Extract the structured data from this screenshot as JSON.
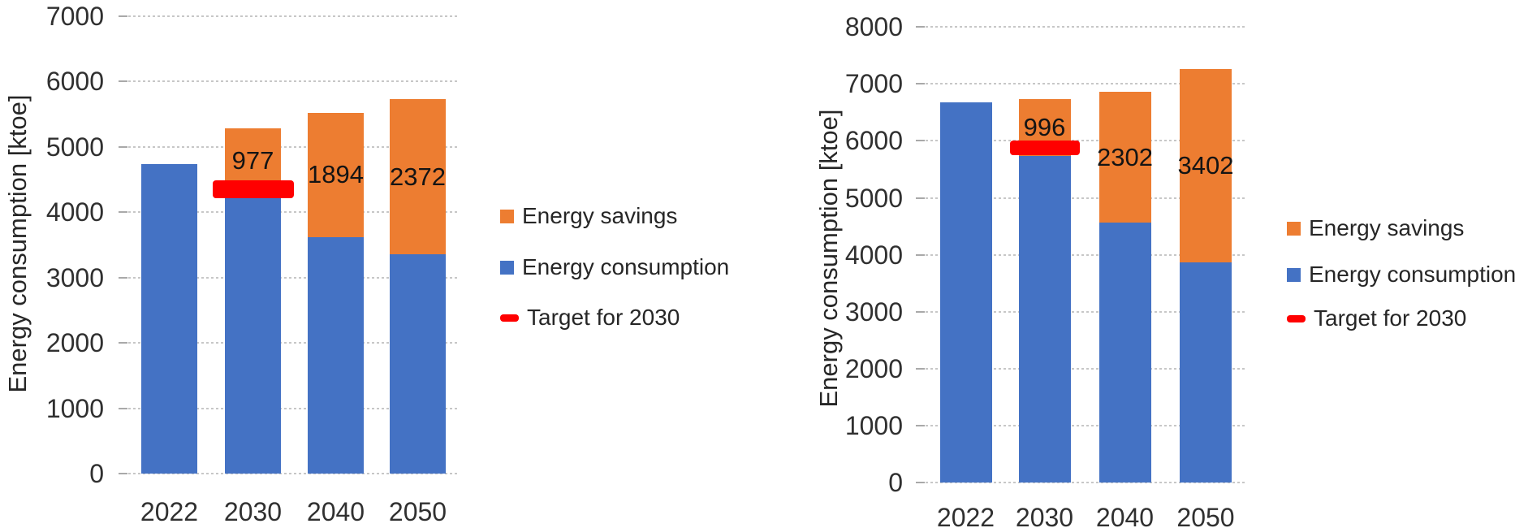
{
  "figure": {
    "background": "#ffffff",
    "description": "Two stacked bar charts of energy consumption and energy savings scenarios for 2022-2050 with a 2030 target marker"
  },
  "colors": {
    "consumption": "#4472C4",
    "savings": "#ED7D31",
    "target": "#FF0000",
    "gridline": "#c7c7c7",
    "axis_text": "#303030"
  },
  "chart_data": [
    {
      "type": "bar",
      "stacked": true,
      "title": "",
      "ylabel": "Energy consumption [ktoe]",
      "xlabel": "",
      "categories": [
        "2022",
        "2030",
        "2040",
        "2050"
      ],
      "series": [
        {
          "name": "Energy consumption",
          "color": "#4472C4",
          "values": [
            4730,
            4300,
            3620,
            3350
          ]
        },
        {
          "name": "Energy savings",
          "color": "#ED7D31",
          "values": [
            0,
            977,
            1894,
            2372
          ]
        }
      ],
      "data_labels": {
        "series": "Energy savings",
        "values": [
          null,
          977,
          1894,
          2372
        ]
      },
      "target_marker": {
        "name": "Target for 2030",
        "category": "2030",
        "value": 4350,
        "color": "#FF0000"
      },
      "ylim": [
        0,
        7000
      ],
      "yticks": [
        0,
        1000,
        2000,
        3000,
        4000,
        5000,
        6000,
        7000
      ],
      "grid": "horizontal-dotted",
      "legend_position": "right",
      "legend": [
        {
          "label": "Energy savings",
          "swatch": "square",
          "color": "#ED7D31"
        },
        {
          "label": "Energy consumption",
          "swatch": "square",
          "color": "#4472C4"
        },
        {
          "label": "Target for 2030",
          "swatch": "dash",
          "color": "#FF0000"
        }
      ]
    },
    {
      "type": "bar",
      "stacked": true,
      "title": "",
      "ylabel": "Energy consumption [ktoe]",
      "xlabel": "",
      "categories": [
        "2022",
        "2030",
        "2040",
        "2050"
      ],
      "series": [
        {
          "name": "Energy consumption",
          "color": "#4472C4",
          "values": [
            6670,
            5740,
            4560,
            3860
          ]
        },
        {
          "name": "Energy savings",
          "color": "#ED7D31",
          "values": [
            0,
            996,
            2302,
            3402
          ]
        }
      ],
      "data_labels": {
        "series": "Energy savings",
        "values": [
          null,
          996,
          2302,
          3402
        ]
      },
      "target_marker": {
        "name": "Target for 2030",
        "category": "2030",
        "value": 5880,
        "color": "#FF0000"
      },
      "ylim": [
        0,
        8000
      ],
      "yticks": [
        0,
        1000,
        2000,
        3000,
        4000,
        5000,
        6000,
        7000,
        8000
      ],
      "grid": "horizontal-dotted",
      "legend_position": "right",
      "legend": [
        {
          "label": "Energy savings",
          "swatch": "square",
          "color": "#ED7D31"
        },
        {
          "label": "Energy consumption",
          "swatch": "square",
          "color": "#4472C4"
        },
        {
          "label": "Target for 2030",
          "swatch": "dash",
          "color": "#FF0000"
        }
      ]
    }
  ]
}
